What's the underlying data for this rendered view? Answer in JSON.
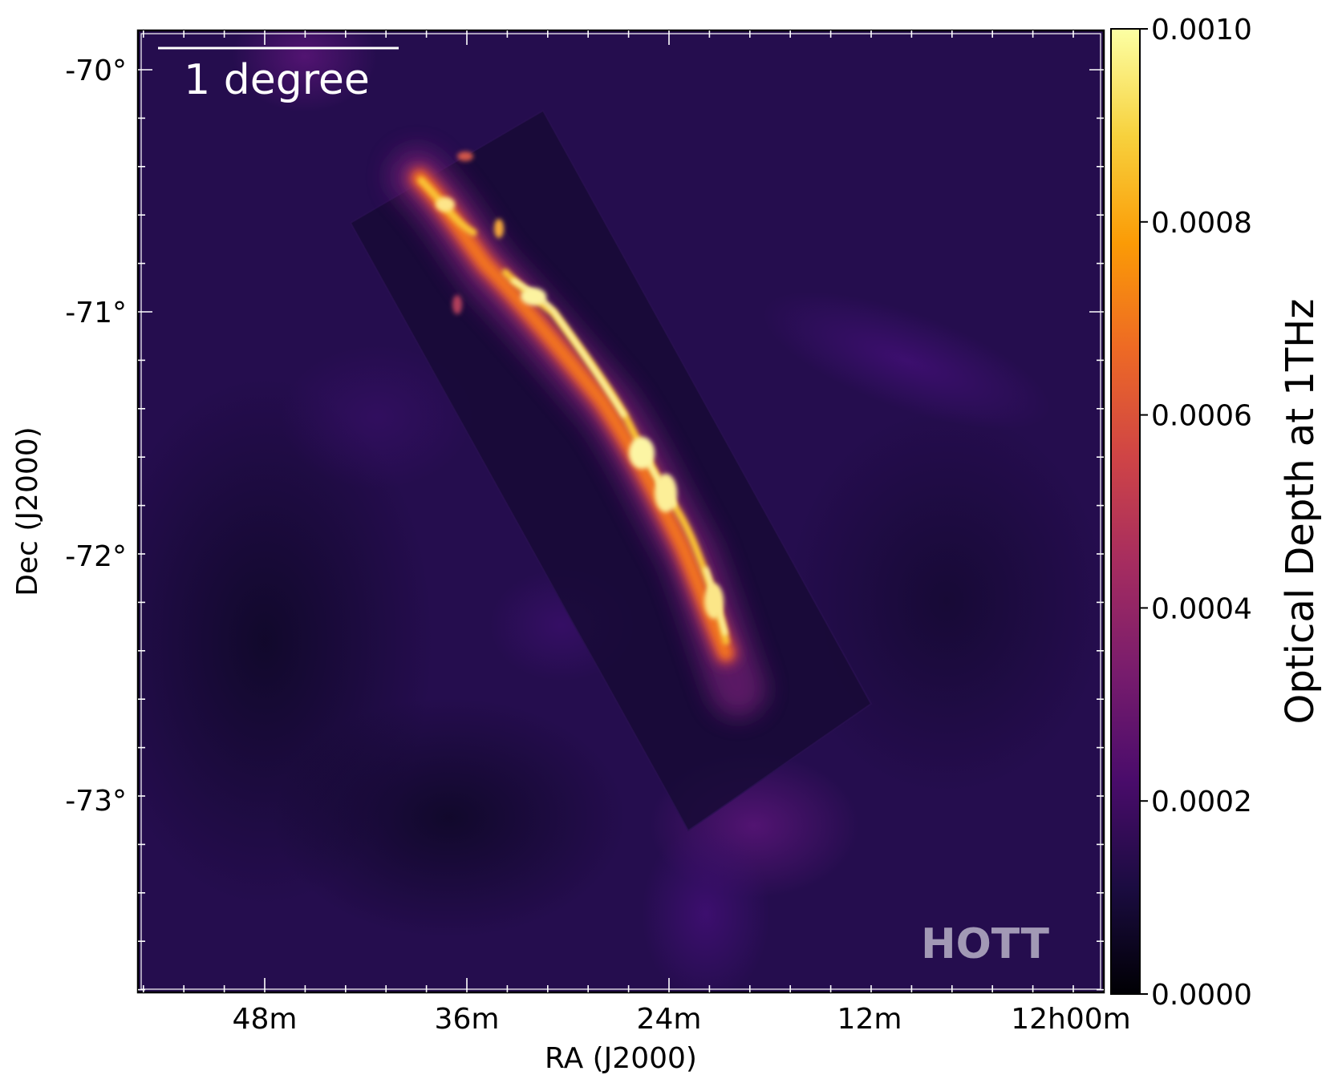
{
  "chart_data": {
    "type": "heatmap",
    "title": "",
    "xlabel": "RA (J2000)",
    "ylabel": "Dec (J2000)",
    "x_ticks": [
      "48m",
      "36m",
      "24m",
      "12m",
      "12h00m"
    ],
    "y_ticks": [
      "-70°",
      "-71°",
      "-72°",
      "-73°"
    ],
    "colorbar": {
      "label": "Optical Depth at 1THz",
      "range": [
        0.0,
        0.001
      ],
      "ticks": [
        "0.0000",
        "0.0002",
        "0.0004",
        "0.0006",
        "0.0008",
        "0.0010"
      ],
      "colormap": "inferno",
      "colors": [
        "#000004",
        "#1b0c41",
        "#4a0c6b",
        "#781c6d",
        "#a52c60",
        "#cf4446",
        "#ed6925",
        "#fb9b06",
        "#f7d13d",
        "#fcffa4"
      ]
    },
    "scale_bar": {
      "label": "1 degree",
      "length_deg": 1
    },
    "watermark": "HOTT",
    "grid": false
  }
}
